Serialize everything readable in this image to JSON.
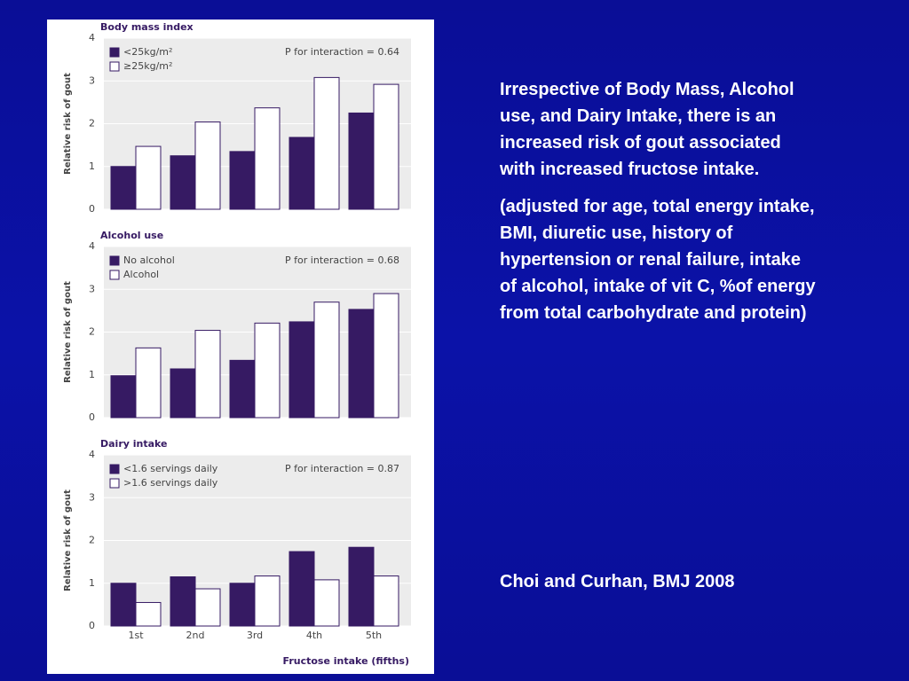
{
  "chart_data": [
    {
      "type": "bar",
      "title": "Body mass index",
      "y_label": "Relative risk of gout",
      "annotation": "P for interaction = 0.64",
      "categories": [
        null,
        null,
        null,
        null,
        null
      ],
      "series": [
        {
          "name": "<25kg/m²",
          "color": "#361a63",
          "values": [
            1.0,
            1.25,
            1.35,
            1.68,
            2.25
          ]
        },
        {
          "name": "≥25kg/m²",
          "color": "#ffffff",
          "values": [
            1.47,
            2.04,
            2.37,
            3.08,
            2.92
          ]
        }
      ],
      "ylim": [
        0,
        4
      ],
      "yticks": [
        0,
        1,
        2,
        3,
        4
      ],
      "grid": true
    },
    {
      "type": "bar",
      "title": "Alcohol use",
      "y_label": "Relative risk of gout",
      "annotation": "P for interaction = 0.68",
      "categories": [
        null,
        null,
        null,
        null,
        null
      ],
      "series": [
        {
          "name": "No alcohol",
          "color": "#361a63",
          "values": [
            0.98,
            1.14,
            1.34,
            2.24,
            2.53
          ]
        },
        {
          "name": "Alcohol",
          "color": "#ffffff",
          "values": [
            1.63,
            2.04,
            2.21,
            2.7,
            2.9
          ]
        }
      ],
      "ylim": [
        0,
        4
      ],
      "yticks": [
        0,
        1,
        2,
        3,
        4
      ],
      "grid": true
    },
    {
      "type": "bar",
      "title": "Dairy intake",
      "y_label": "Relative risk of gout",
      "annotation": "P for interaction = 0.87",
      "x_label": "Fructose intake (fifths)",
      "categories": [
        "1st",
        "2nd",
        "3rd",
        "4th",
        "5th"
      ],
      "series": [
        {
          "name": "<1.6 servings daily",
          "color": "#361a63",
          "values": [
            1.0,
            1.15,
            1.0,
            1.74,
            1.84
          ]
        },
        {
          "name": ">1.6 servings daily",
          "color": "#ffffff",
          "values": [
            0.55,
            0.87,
            1.17,
            1.08,
            1.17
          ]
        }
      ],
      "ylim": [
        0,
        4
      ],
      "yticks": [
        0,
        1,
        2,
        3,
        4
      ],
      "grid": true
    }
  ],
  "text": {
    "paragraphs": [
      "Irrespective of Body Mass, Alcohol use, and Dairy Intake, there is an increased risk of gout associated with increased fructose intake.",
      "(adjusted for age, total energy intake, BMI, diuretic use, history of hypertension or renal failure, intake of alcohol, intake of vit C, %of energy from total carbohydrate and protein)"
    ],
    "citation": "Choi and Curhan, BMJ 2008"
  }
}
